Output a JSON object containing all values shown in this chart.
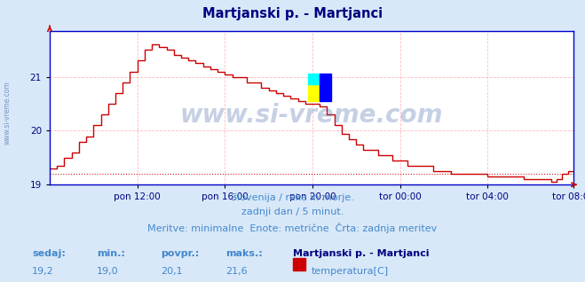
{
  "title": "Martjanski p. - Martjanci",
  "title_color": "#000080",
  "bg_color": "#d8e8f8",
  "plot_bg_color": "#ffffff",
  "grid_color": "#ffaaaa",
  "grid_style": "--",
  "tick_color": "#000080",
  "line_color": "#cc0000",
  "line_width": 1.0,
  "ylim": [
    19.0,
    21.85
  ],
  "yticks": [
    19,
    20,
    21
  ],
  "xlim": [
    0,
    287
  ],
  "xtick_positions": [
    48,
    96,
    144,
    192,
    240,
    287
  ],
  "xtick_labels": [
    "pon 12:00",
    "pon 16:00",
    "pon 20:00",
    "tor 00:00",
    "tor 04:00",
    "tor 08:00"
  ],
  "hline_value": 19.2,
  "hline_color": "#cc0000",
  "hline_style": ":",
  "watermark": "www.si-vreme.com",
  "watermark_color": "#4466aa",
  "watermark_alpha": 0.3,
  "sidebar_text": "www.si-vreme.com",
  "sidebar_color": "#4466aa",
  "footer_lines": [
    "Slovenija / reke in morje.",
    "zadnji dan / 5 minut.",
    "Meritve: minimalne  Enote: metrične  Črta: zadnja meritev"
  ],
  "footer_color": "#4488cc",
  "footer_fontsize": 8,
  "stats_labels": [
    "sedaj:",
    "min.:",
    "povpr.:",
    "maks.:"
  ],
  "stats_values": [
    "19,2",
    "19,0",
    "20,1",
    "21,6"
  ],
  "stats_color": "#4488cc",
  "stats_bold_color": "#000080",
  "legend_title": "Martjanski p. - Martjanci",
  "legend_label": "temperatura[C]",
  "legend_color": "#000080",
  "legend_rect_color": "#cc0000",
  "arrow_color": "#cc0000",
  "axis_line_color": "#0000cc",
  "current_marker_x": 148,
  "current_marker_y": 20.55
}
